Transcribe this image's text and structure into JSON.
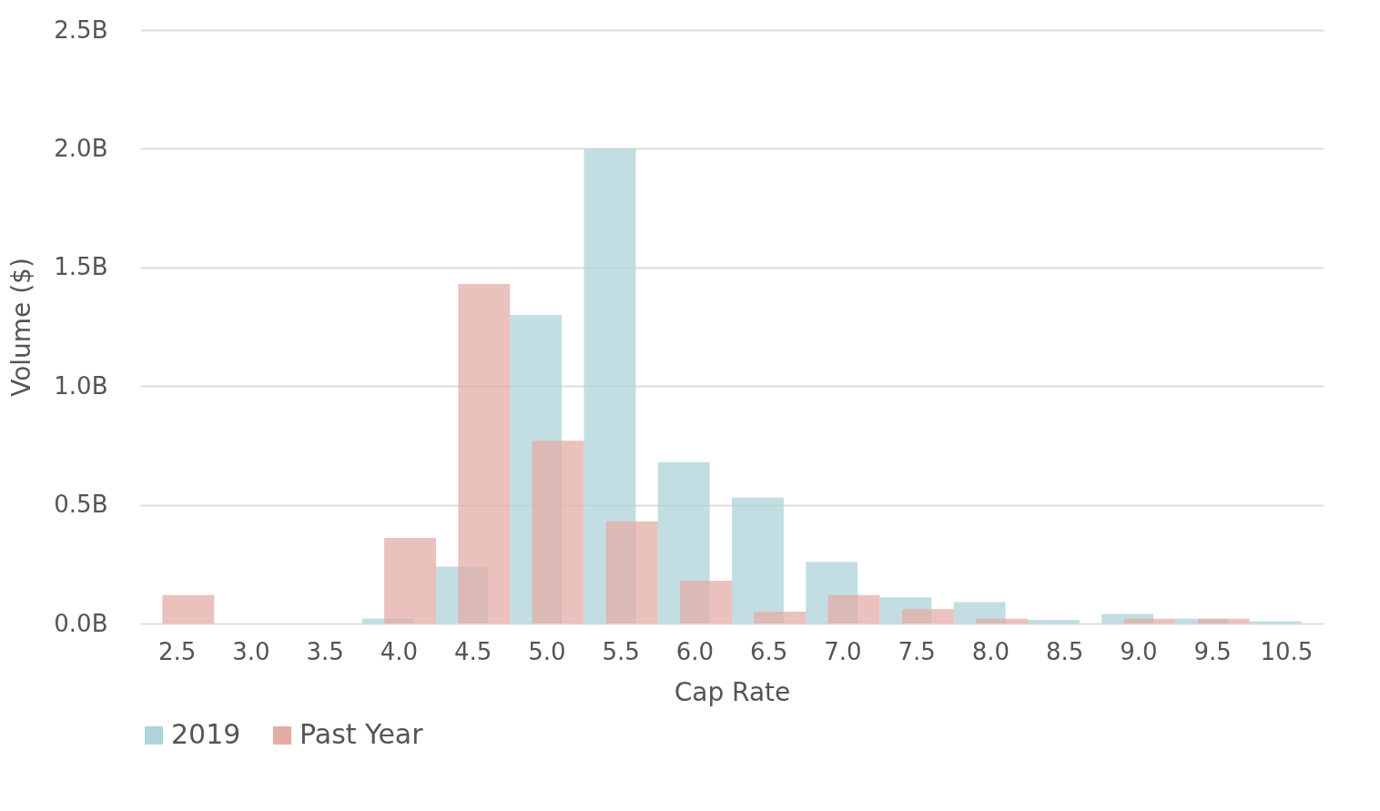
{
  "chart_data": {
    "type": "bar",
    "xlabel": "Cap Rate",
    "ylabel": "Volume ($)",
    "categories": [
      "2.5",
      "3.0",
      "3.5",
      "4.0",
      "4.5",
      "5.0",
      "5.5",
      "6.0",
      "6.5",
      "7.0",
      "7.5",
      "8.0",
      "8.5",
      "9.0",
      "9.5",
      "10.5"
    ],
    "series": [
      {
        "name": "2019",
        "color": "#aed3da",
        "values": [
          null,
          null,
          null,
          0.02,
          0.24,
          1.3,
          2.0,
          0.68,
          0.53,
          0.26,
          0.11,
          0.09,
          0.015,
          0.04,
          0.02,
          0.01
        ]
      },
      {
        "name": "Past Year",
        "color": "#e3aca5",
        "values": [
          0.12,
          null,
          null,
          0.36,
          1.43,
          0.77,
          0.43,
          0.18,
          0.05,
          0.12,
          0.06,
          0.02,
          null,
          0.02,
          0.02,
          null
        ]
      }
    ],
    "ylim": [
      0,
      2.5
    ],
    "yticks": [
      {
        "value": 0,
        "label": "0.0B"
      },
      {
        "value": 0.5,
        "label": "0.5B"
      },
      {
        "value": 1,
        "label": "1.0B"
      },
      {
        "value": 1.5,
        "label": "1.5B"
      },
      {
        "value": 2,
        "label": "2.0B"
      },
      {
        "value": 2.5,
        "label": "2.5B"
      }
    ],
    "grid": "y",
    "legend": "bottom"
  }
}
